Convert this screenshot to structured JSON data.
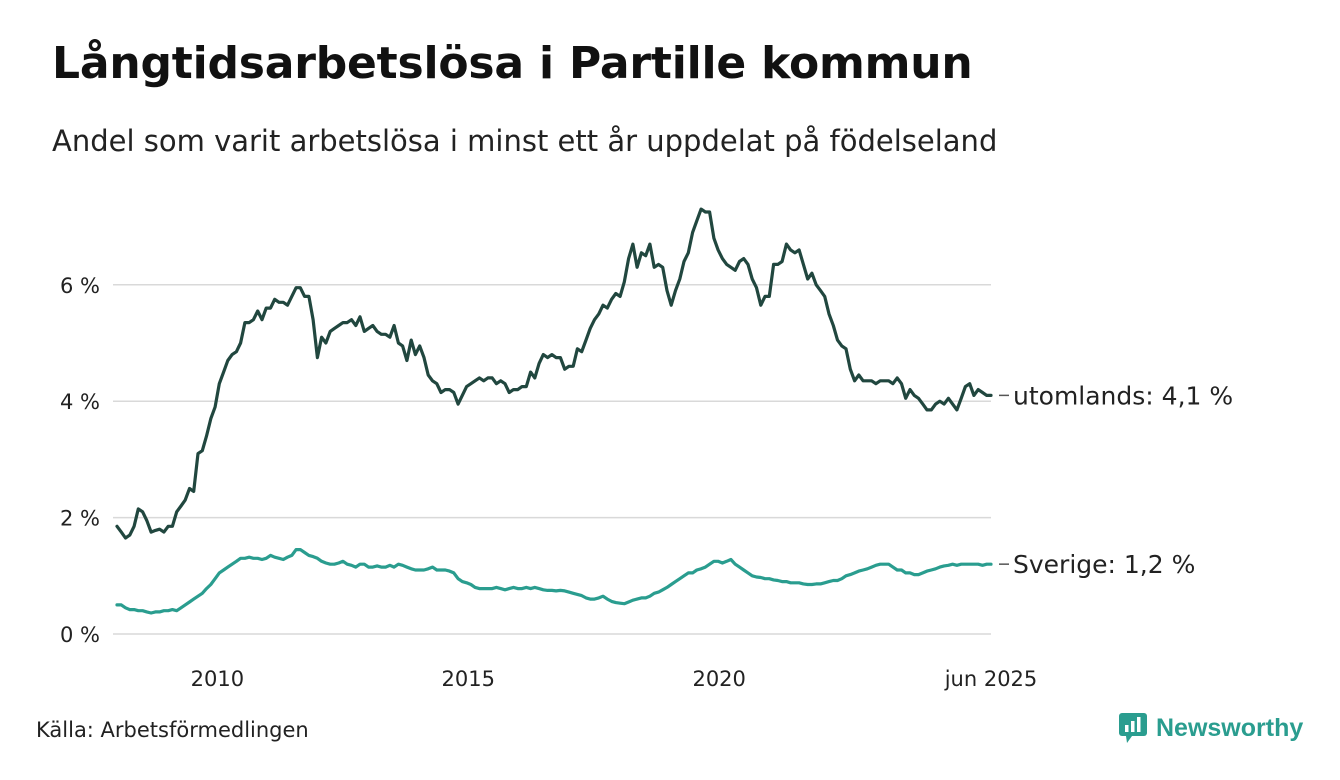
{
  "title": "Långtidsarbetslösa i Partille kommun",
  "subtitle": "Andel som varit arbetslösa i minst ett år uppdelat på födelseland",
  "source": "Källa: Arbetsförmedlingen",
  "brand": "Newsworthy",
  "colors": {
    "utomlands": "#21473f",
    "sverige": "#2a9d8f",
    "grid": "#d9d9d9",
    "text": "#222222",
    "brand": "#2a9d8f"
  },
  "chart_data": {
    "type": "line",
    "title": "Långtidsarbetslösa i Partille kommun",
    "subtitle": "Andel som varit arbetslösa i minst ett år uppdelat på födelseland",
    "x_start": "2008-01",
    "x_end": "2025-06",
    "xlim": [
      "2008-01",
      "2025-06"
    ],
    "ylim": [
      0,
      7.6
    ],
    "y_ticks": [
      0,
      2,
      4,
      6
    ],
    "y_tick_labels": [
      "0 %",
      "2 %",
      "4 %",
      "6 %"
    ],
    "x_ticks": [
      "2010-01",
      "2015-01",
      "2020-01",
      "2025-06"
    ],
    "x_tick_labels": [
      "2010",
      "2015",
      "2020",
      "jun 2025"
    ],
    "grid": "horizontal",
    "legend": "end-of-line labels",
    "series": [
      {
        "name": "utomlands",
        "end_label": "utomlands: 4,1 %",
        "color": "#21473f",
        "values": [
          1.85,
          1.75,
          1.65,
          1.7,
          1.85,
          2.15,
          2.1,
          1.95,
          1.75,
          1.78,
          1.8,
          1.75,
          1.85,
          1.85,
          2.1,
          2.2,
          2.3,
          2.5,
          2.45,
          3.1,
          3.15,
          3.4,
          3.7,
          3.9,
          4.3,
          4.5,
          4.7,
          4.8,
          4.85,
          5.0,
          5.35,
          5.35,
          5.4,
          5.55,
          5.4,
          5.6,
          5.6,
          5.75,
          5.7,
          5.7,
          5.65,
          5.8,
          5.95,
          5.95,
          5.8,
          5.8,
          5.4,
          4.75,
          5.1,
          5.0,
          5.2,
          5.25,
          5.3,
          5.35,
          5.35,
          5.4,
          5.3,
          5.45,
          5.2,
          5.25,
          5.3,
          5.2,
          5.15,
          5.15,
          5.1,
          5.3,
          5.0,
          4.95,
          4.7,
          5.05,
          4.8,
          4.95,
          4.75,
          4.45,
          4.35,
          4.3,
          4.15,
          4.2,
          4.2,
          4.15,
          3.95,
          4.1,
          4.25,
          4.3,
          4.35,
          4.4,
          4.35,
          4.4,
          4.4,
          4.3,
          4.35,
          4.3,
          4.15,
          4.2,
          4.2,
          4.25,
          4.25,
          4.5,
          4.4,
          4.65,
          4.8,
          4.75,
          4.8,
          4.75,
          4.75,
          4.55,
          4.6,
          4.6,
          4.9,
          4.85,
          5.05,
          5.25,
          5.4,
          5.5,
          5.65,
          5.6,
          5.75,
          5.85,
          5.8,
          6.05,
          6.45,
          6.7,
          6.3,
          6.55,
          6.5,
          6.7,
          6.3,
          6.35,
          6.3,
          5.9,
          5.65,
          5.9,
          6.1,
          6.4,
          6.55,
          6.9,
          7.1,
          7.3,
          7.25,
          7.25,
          6.8,
          6.6,
          6.45,
          6.35,
          6.3,
          6.25,
          6.4,
          6.45,
          6.35,
          6.1,
          5.95,
          5.65,
          5.8,
          5.8,
          6.35,
          6.35,
          6.4,
          6.7,
          6.6,
          6.55,
          6.6,
          6.35,
          6.1,
          6.2,
          6.0,
          5.9,
          5.8,
          5.5,
          5.3,
          5.05,
          4.95,
          4.9,
          4.55,
          4.35,
          4.45,
          4.35,
          4.35,
          4.35,
          4.3,
          4.35,
          4.35,
          4.35,
          4.3,
          4.4,
          4.3,
          4.05,
          4.2,
          4.1,
          4.05,
          3.95,
          3.85,
          3.85,
          3.95,
          4.0,
          3.95,
          4.05,
          3.95,
          3.85,
          4.05,
          4.25,
          4.3,
          4.1,
          4.2,
          4.15,
          4.1,
          4.1
        ]
      },
      {
        "name": "Sverige",
        "end_label": "Sverige: 1,2 %",
        "color": "#2a9d8f",
        "values": [
          0.5,
          0.5,
          0.45,
          0.42,
          0.42,
          0.4,
          0.4,
          0.38,
          0.36,
          0.38,
          0.38,
          0.4,
          0.4,
          0.42,
          0.4,
          0.45,
          0.5,
          0.55,
          0.6,
          0.65,
          0.7,
          0.78,
          0.85,
          0.95,
          1.05,
          1.1,
          1.15,
          1.2,
          1.25,
          1.3,
          1.3,
          1.32,
          1.3,
          1.3,
          1.28,
          1.3,
          1.35,
          1.32,
          1.3,
          1.28,
          1.32,
          1.35,
          1.45,
          1.45,
          1.4,
          1.35,
          1.33,
          1.3,
          1.25,
          1.22,
          1.2,
          1.2,
          1.22,
          1.25,
          1.2,
          1.18,
          1.15,
          1.2,
          1.2,
          1.15,
          1.15,
          1.17,
          1.15,
          1.15,
          1.18,
          1.15,
          1.2,
          1.18,
          1.15,
          1.12,
          1.1,
          1.1,
          1.1,
          1.12,
          1.15,
          1.1,
          1.1,
          1.1,
          1.08,
          1.05,
          0.95,
          0.9,
          0.88,
          0.85,
          0.8,
          0.78,
          0.78,
          0.78,
          0.78,
          0.8,
          0.78,
          0.76,
          0.78,
          0.8,
          0.78,
          0.78,
          0.8,
          0.78,
          0.8,
          0.78,
          0.76,
          0.75,
          0.75,
          0.74,
          0.75,
          0.74,
          0.72,
          0.7,
          0.68,
          0.66,
          0.62,
          0.6,
          0.6,
          0.62,
          0.65,
          0.6,
          0.56,
          0.54,
          0.53,
          0.52,
          0.55,
          0.58,
          0.6,
          0.62,
          0.62,
          0.65,
          0.7,
          0.72,
          0.76,
          0.8,
          0.85,
          0.9,
          0.95,
          1.0,
          1.05,
          1.05,
          1.1,
          1.12,
          1.15,
          1.2,
          1.25,
          1.25,
          1.22,
          1.25,
          1.28,
          1.2,
          1.15,
          1.1,
          1.05,
          1.0,
          0.98,
          0.97,
          0.95,
          0.95,
          0.93,
          0.92,
          0.9,
          0.9,
          0.88,
          0.88,
          0.88,
          0.86,
          0.85,
          0.85,
          0.86,
          0.86,
          0.88,
          0.9,
          0.92,
          0.92,
          0.95,
          1.0,
          1.02,
          1.05,
          1.08,
          1.1,
          1.12,
          1.15,
          1.18,
          1.2,
          1.2,
          1.2,
          1.15,
          1.1,
          1.1,
          1.05,
          1.05,
          1.02,
          1.02,
          1.05,
          1.08,
          1.1,
          1.12,
          1.15,
          1.17,
          1.18,
          1.2,
          1.18,
          1.2,
          1.2,
          1.2,
          1.2,
          1.2,
          1.18,
          1.2,
          1.2
        ]
      }
    ]
  }
}
